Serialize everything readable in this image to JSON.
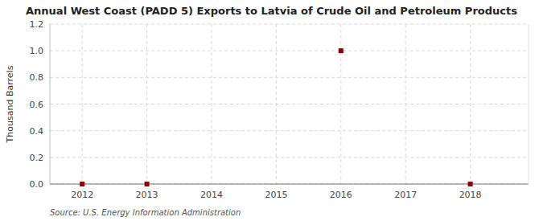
{
  "chart_data": {
    "type": "scatter",
    "title": "Annual West Coast (PADD 5) Exports to Latvia of Crude Oil and Petroleum Products",
    "ylabel": "Thousand Barrels",
    "source": "Source: U.S. Energy Information Administration",
    "x": [
      2012,
      2013,
      2016,
      2018
    ],
    "values": [
      0.0,
      0.0,
      1.0,
      0.0
    ],
    "color": "#8b0000",
    "marker": "square",
    "xlim": [
      2011.5,
      2018.9
    ],
    "ylim": [
      0.0,
      1.2
    ],
    "xticks": [
      2012,
      2013,
      2014,
      2015,
      2016,
      2017,
      2018
    ],
    "yticks": [
      {
        "value": 0.0,
        "label": "0.0"
      },
      {
        "value": 0.2,
        "label": "0.2"
      },
      {
        "value": 0.4,
        "label": "0.4"
      },
      {
        "value": 0.6,
        "label": "0.6"
      },
      {
        "value": 0.8,
        "label": "0.8"
      },
      {
        "value": 1.0,
        "label": "1.0"
      },
      {
        "value": 1.2,
        "label": "1.2"
      }
    ],
    "grid": true
  }
}
